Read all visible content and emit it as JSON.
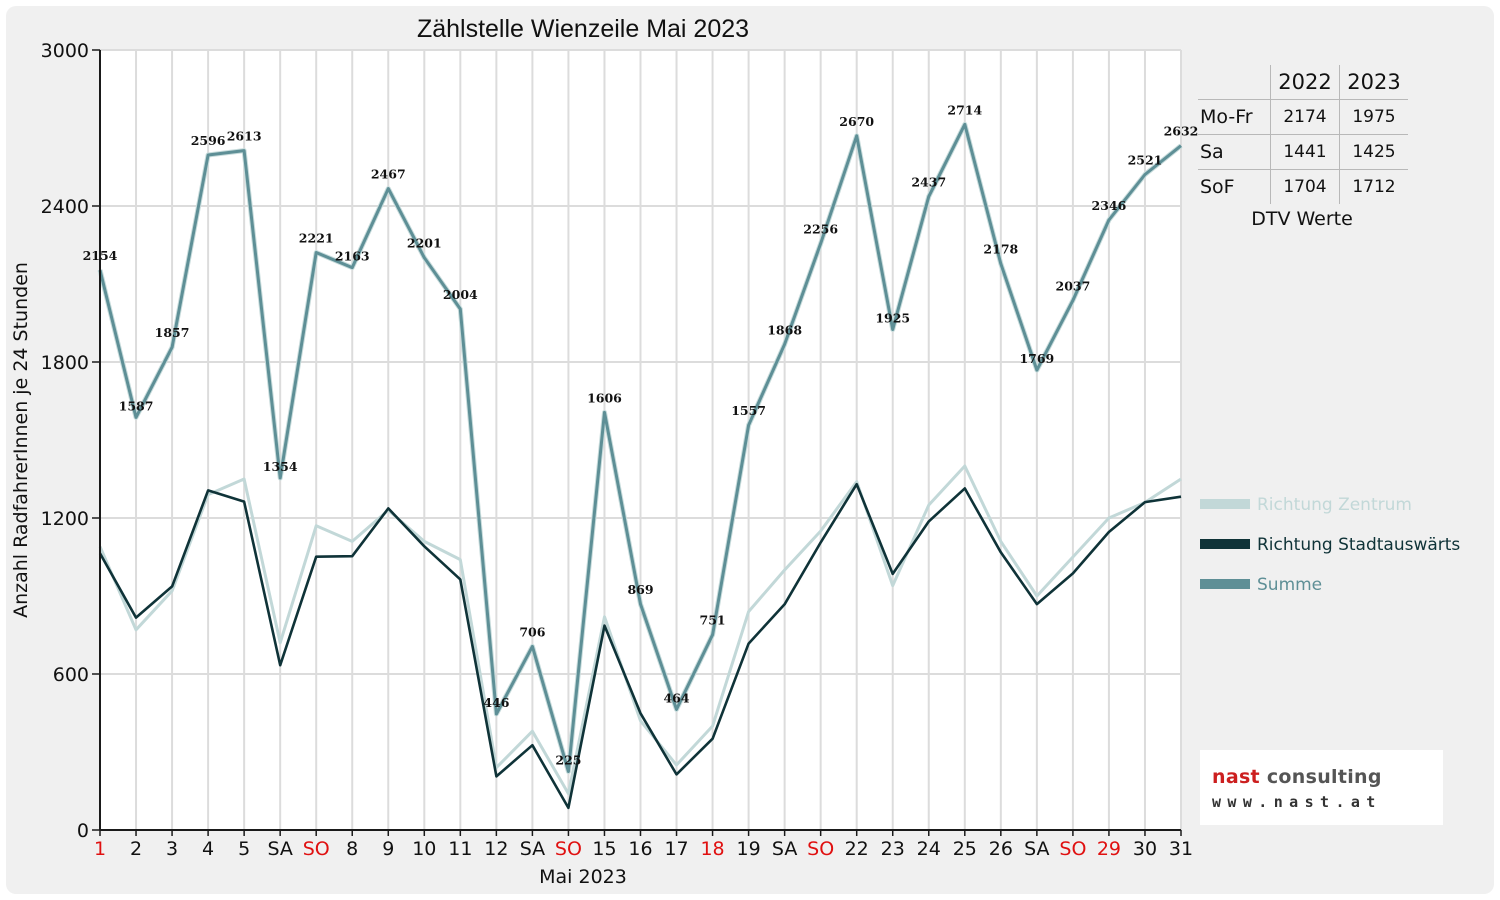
{
  "chart_data": {
    "type": "line",
    "title": "Zählstelle Wienzeile Mai 2023",
    "xlabel": "Mai 2023",
    "ylabel": "Anzahl RadfahrerInnen je 24 Stunden",
    "ylim": [
      0,
      3000
    ],
    "yticks": [
      0,
      600,
      1200,
      1800,
      2400,
      3000
    ],
    "grid": true,
    "legend_position": "right",
    "categories": [
      "1",
      "2",
      "3",
      "4",
      "5",
      "SA",
      "SO",
      "8",
      "9",
      "10",
      "11",
      "12",
      "SA",
      "SO",
      "15",
      "16",
      "17",
      "18",
      "19",
      "SA",
      "SO",
      "22",
      "23",
      "24",
      "25",
      "26",
      "SA",
      "SO",
      "29",
      "30",
      "31"
    ],
    "red_categories": [
      0,
      6,
      13,
      17,
      20,
      27,
      28
    ],
    "series": [
      {
        "name": "Richtung Zentrum",
        "color": "#c2d8d8",
        "values": [
          1090,
          770,
          920,
          1290,
          1350,
          720,
          1170,
          1110,
          1230,
          1110,
          1040,
          240,
          380,
          140,
          820,
          420,
          250,
          400,
          840,
          1000,
          1150,
          1340,
          940,
          1250,
          1400,
          1110,
          900,
          1050,
          1200,
          1260,
          1350
        ]
      },
      {
        "name": "Richtung Stadtauswärts",
        "color": "#0f3338",
        "values": [
          1064,
          817,
          937,
          1306,
          1263,
          634,
          1051,
          1053,
          1237,
          1091,
          964,
          206,
          326,
          85,
          786,
          449,
          214,
          351,
          717,
          868,
          1106,
          1330,
          985,
          1187,
          1314,
          1068,
          869,
          987,
          1146,
          1261,
          1282
        ]
      },
      {
        "name": "Summe",
        "color": "#5e8f96",
        "values": [
          2154,
          1587,
          1857,
          2596,
          2613,
          1354,
          2221,
          2163,
          2467,
          2201,
          2004,
          446,
          706,
          225,
          1606,
          869,
          464,
          751,
          1557,
          1868,
          2256,
          2670,
          1925,
          2437,
          2714,
          2178,
          1769,
          2037,
          2346,
          2521,
          2632
        ]
      }
    ]
  },
  "dtv_table": {
    "columns": [
      "2022",
      "2023"
    ],
    "rows": [
      {
        "label": "Mo-Fr",
        "v2022": "2174",
        "v2023": "1975"
      },
      {
        "label": "Sa",
        "v2022": "1441",
        "v2023": "1425"
      },
      {
        "label": "SoF",
        "v2022": "1704",
        "v2023": "1712"
      }
    ],
    "caption": "DTV Werte"
  },
  "logo": {
    "brand_part1": "nast",
    "brand_part2": " consulting",
    "url": "www.nast.at"
  },
  "colors": {
    "background": "#f0f0f0",
    "grid": "#dcdcdc",
    "axis": "#1a1a1a",
    "holiday_red": "#e01010",
    "logo_red": "#cc1f1f"
  }
}
